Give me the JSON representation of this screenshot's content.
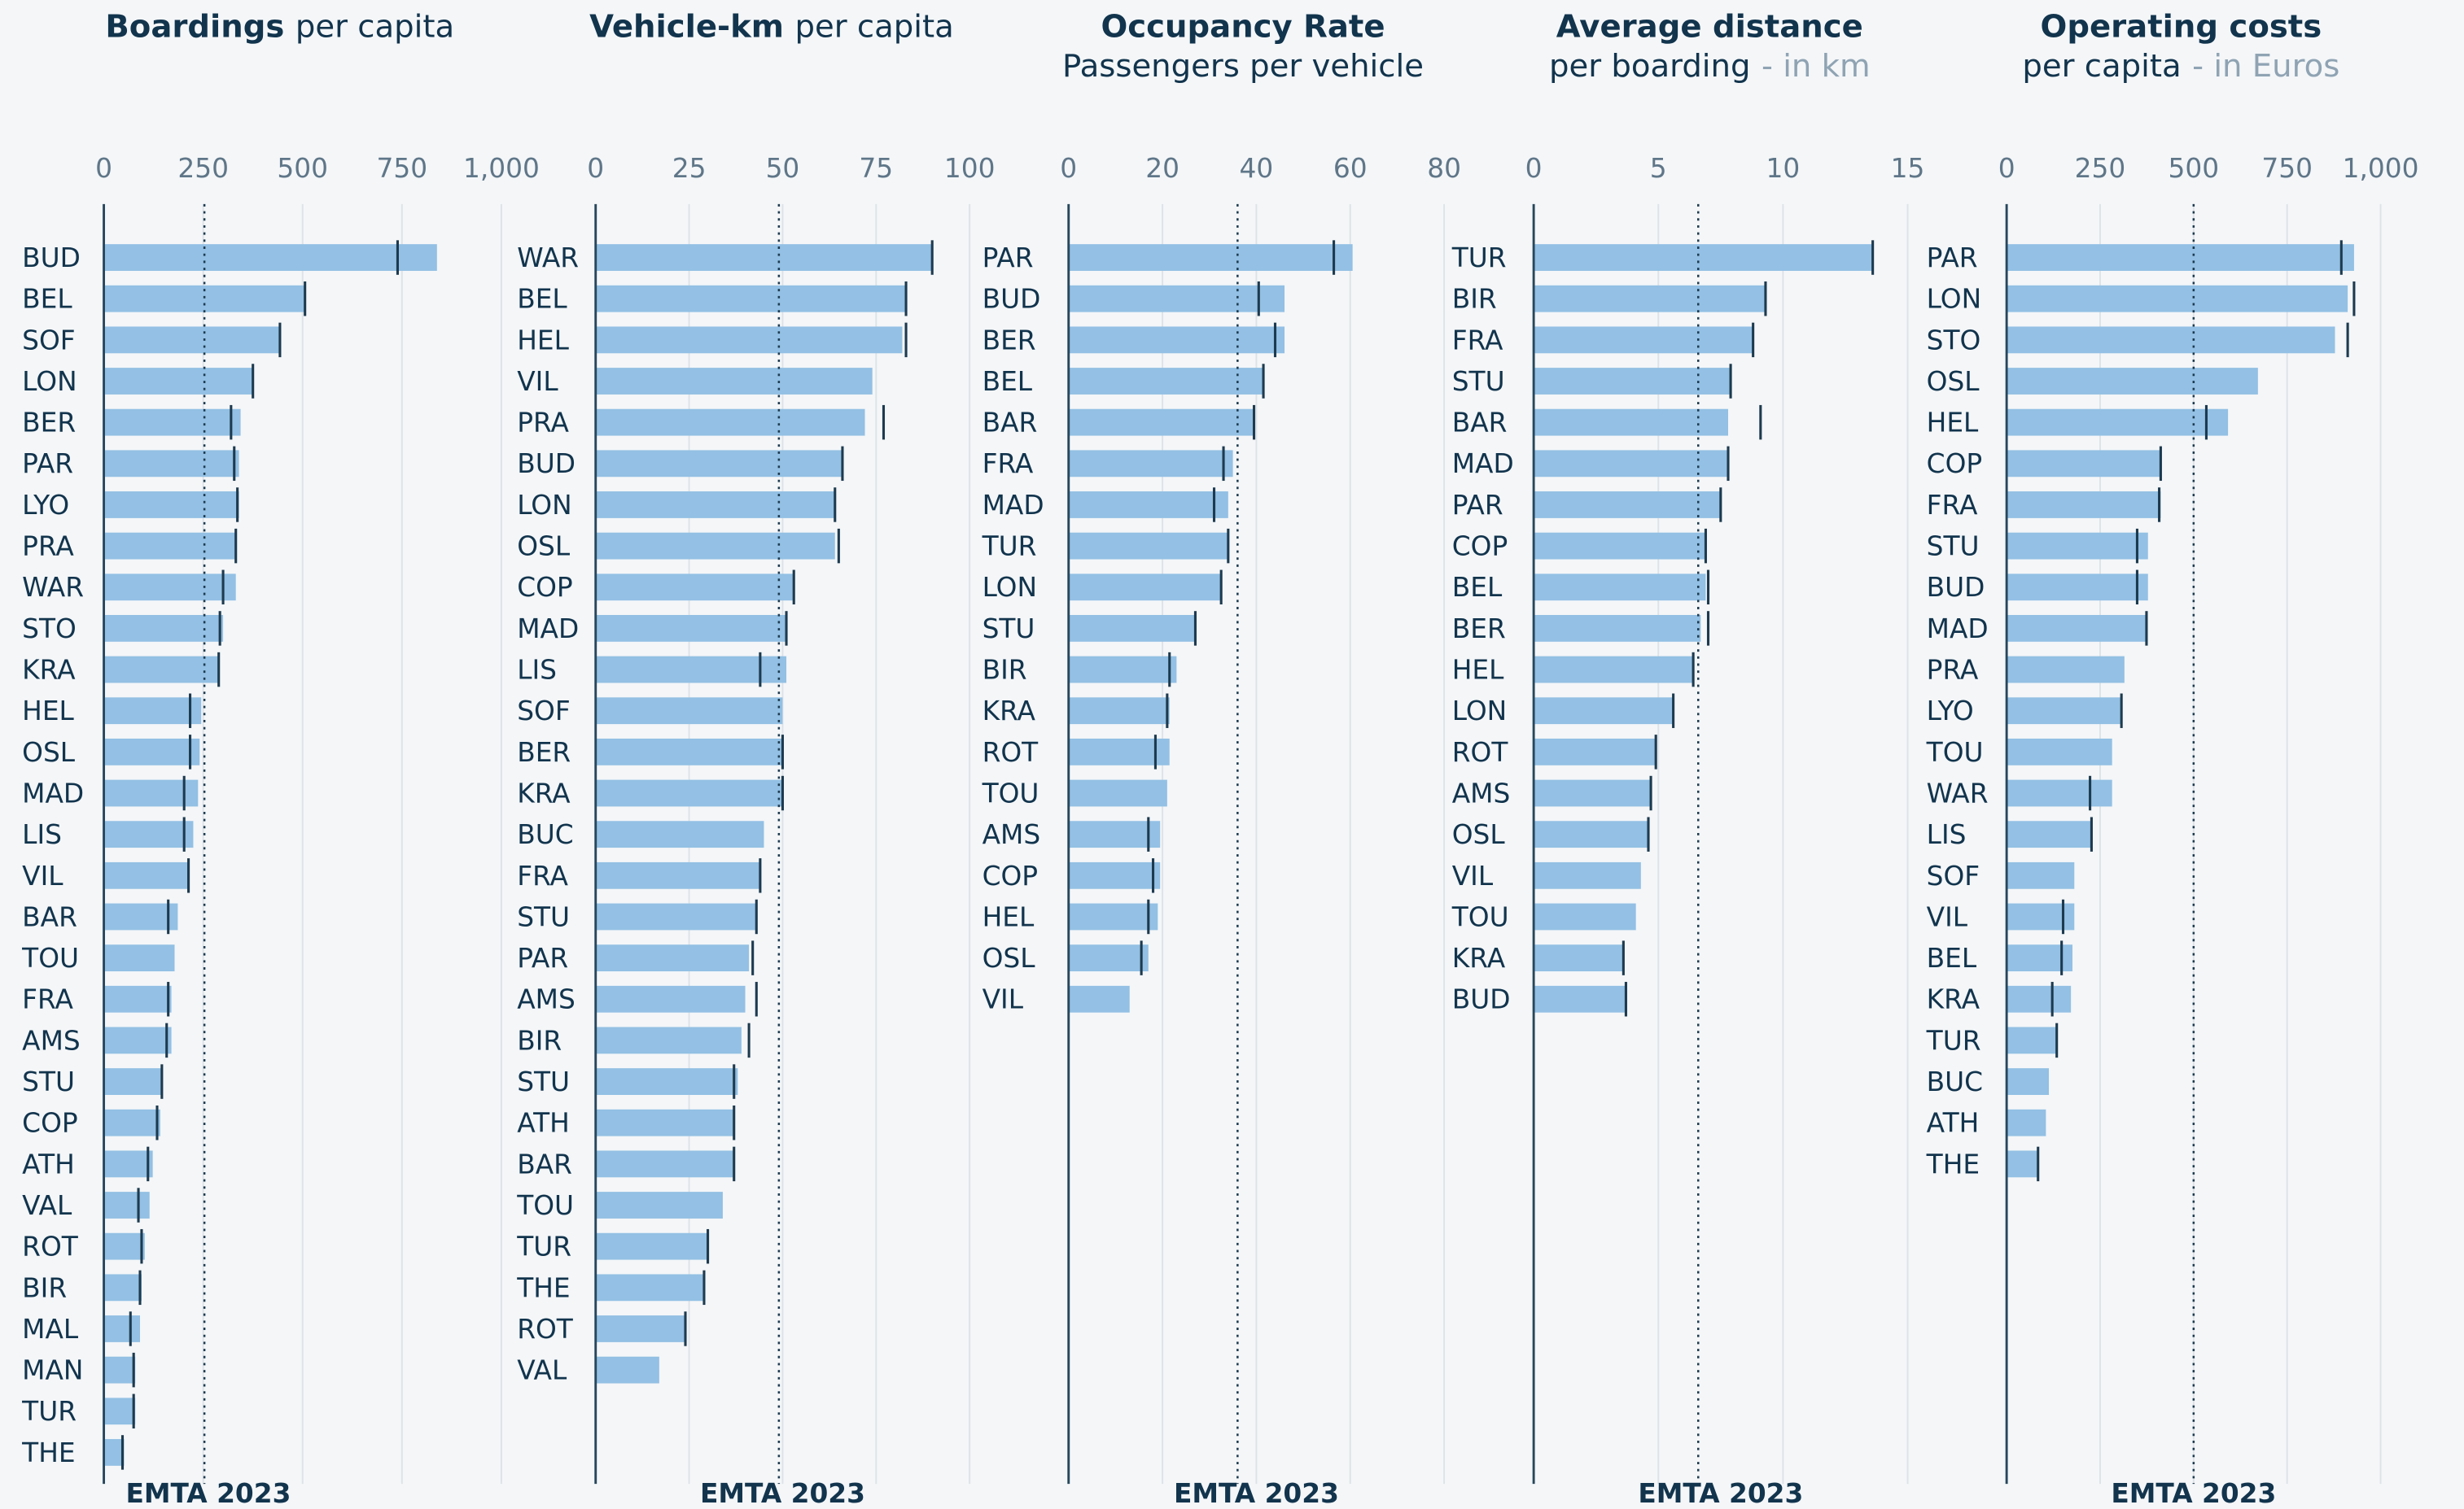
{
  "chart_data": [
    {
      "type": "bar",
      "title": "Boardings",
      "subtitle": "per capita",
      "footer": "EMTA 2023",
      "xlim": [
        0,
        1000
      ],
      "xticks": [
        0,
        250,
        500,
        750,
        {
          "value": 1000,
          "label": "1,000"
        }
      ],
      "grid": true,
      "reference_line": 253,
      "categories": [
        "BUD",
        "BEL",
        "SOF",
        "LON",
        "BER",
        "PAR",
        "LYO",
        "PRA",
        "WAR",
        "STO",
        "KRA",
        "HEL",
        "OSL",
        "MAD",
        "LIS",
        "VIL",
        "BAR",
        "TOU",
        "FRA",
        "AMS",
        "STU",
        "COP",
        "ATH",
        "VAL",
        "ROT",
        "BIR",
        "MAL",
        "MAN",
        "TUR",
        "THE"
      ],
      "series": [
        {
          "color": "#93c0e4",
          "values": [
            838,
            506,
            443,
            375,
            344,
            340,
            340,
            332,
            332,
            300,
            289,
            245,
            241,
            237,
            225,
            213,
            186,
            178,
            170,
            170,
            146,
            142,
            123,
            115,
            103,
            95,
            91,
            79,
            79,
            51
          ]
        },
        {
          "color": "#1d3a4f",
          "values": [
            739,
            506,
            443,
            375,
            320,
            328,
            336,
            332,
            300,
            292,
            289,
            217,
            217,
            202,
            202,
            213,
            162,
            null,
            162,
            158,
            146,
            134,
            111,
            87,
            95,
            91,
            67,
            75,
            75,
            47
          ]
        }
      ]
    },
    {
      "type": "bar",
      "title": "Vehicle-km",
      "subtitle": "per capita",
      "footer": "EMTA 2023",
      "xlim": [
        0,
        100
      ],
      "xticks": [
        0,
        25,
        50,
        75,
        100
      ],
      "grid": true,
      "reference_line": 49,
      "categories": [
        "WAR",
        "BEL",
        "HEL",
        "VIL",
        "PRA",
        "BUD",
        "LON",
        "OSL",
        "COP",
        "MAD",
        "LIS",
        "SOF",
        "BER",
        "KRA",
        "BUC",
        "FRA",
        "STU",
        "PAR",
        "AMS",
        "BIR",
        "STU",
        "ATH",
        "BAR",
        "TOU",
        "TUR",
        "THE",
        "ROT",
        "VAL"
      ],
      "series": [
        {
          "color": "#93c0e4",
          "values": [
            90,
            83,
            82,
            74,
            72,
            66,
            64,
            64,
            53,
            51,
            51,
            50,
            50,
            50,
            45,
            44,
            43,
            41,
            40,
            39,
            38,
            37,
            37,
            34,
            30,
            29,
            24,
            17
          ]
        },
        {
          "color": "#1d3a4f",
          "values": [
            90,
            83,
            83,
            null,
            77,
            66,
            64,
            65,
            53,
            51,
            44,
            null,
            50,
            50,
            null,
            44,
            43,
            42,
            43,
            41,
            37,
            37,
            37,
            null,
            30,
            29,
            24,
            null
          ]
        }
      ]
    },
    {
      "type": "bar",
      "title": "Occupancy Rate",
      "subtitle": "Passengers per vehicle",
      "footer": "EMTA 2023",
      "xlim": [
        0,
        80
      ],
      "xticks": [
        0,
        20,
        40,
        60,
        80
      ],
      "grid": true,
      "reference_line": 36,
      "categories": [
        "PAR",
        "BUD",
        "BER",
        "BEL",
        "BAR",
        "FRA",
        "MAD",
        "TUR",
        "LON",
        "STU",
        "BIR",
        "KRA",
        "ROT",
        "TOU",
        "AMS",
        "COP",
        "HEL",
        "OSL",
        "VIL"
      ],
      "series": [
        {
          "color": "#93c0e4",
          "values": [
            60.5,
            46,
            46,
            41.5,
            39.5,
            35,
            34,
            34,
            32.5,
            27,
            23,
            21.5,
            21.5,
            21,
            19.5,
            19.5,
            19,
            17,
            13
          ]
        },
        {
          "color": "#1d3a4f",
          "values": [
            56.5,
            40.5,
            44,
            41.5,
            39.5,
            33,
            31,
            34,
            32.5,
            27,
            21.5,
            21,
            18.5,
            null,
            17,
            18,
            17,
            15.5,
            null
          ]
        }
      ]
    },
    {
      "type": "bar",
      "title": "Average distance",
      "subtitle": "per boarding",
      "unit_note": "- in km",
      "footer": "EMTA 2023",
      "xlim": [
        0,
        15
      ],
      "xticks": [
        0,
        5,
        10,
        15
      ],
      "grid": true,
      "reference_line": 6.6,
      "categories": [
        "TUR",
        "BIR",
        "FRA",
        "STU",
        "BAR",
        "MAD",
        "PAR",
        "COP",
        "BEL",
        "BER",
        "HEL",
        "LON",
        "ROT",
        "AMS",
        "OSL",
        "VIL",
        "TOU",
        "KRA",
        "BUD"
      ],
      "series": [
        {
          "color": "#93c0e4",
          "values": [
            13.6,
            9.3,
            8.8,
            7.9,
            7.8,
            7.8,
            7.5,
            6.9,
            6.9,
            6.7,
            6.4,
            5.6,
            4.9,
            4.7,
            4.6,
            4.3,
            4.1,
            3.6,
            3.7
          ]
        },
        {
          "color": "#1d3a4f",
          "values": [
            13.6,
            9.3,
            8.8,
            7.9,
            9.1,
            7.8,
            7.5,
            6.9,
            7.0,
            7.0,
            6.4,
            5.6,
            4.9,
            4.7,
            4.6,
            null,
            null,
            3.6,
            3.7
          ]
        }
      ]
    },
    {
      "type": "bar",
      "title": "Operating costs",
      "subtitle": "per capita",
      "unit_note": "- in Euros",
      "footer": "EMTA 2023",
      "xlim": [
        0,
        1000
      ],
      "xticks": [
        0,
        250,
        500,
        750,
        {
          "value": 1000,
          "label": "1,000"
        }
      ],
      "grid": true,
      "reference_line": 500,
      "categories": [
        "PAR",
        "LON",
        "STO",
        "OSL",
        "HEL",
        "COP",
        "FRA",
        "STU",
        "BUD",
        "MAD",
        "PRA",
        "LYO",
        "TOU",
        "WAR",
        "LIS",
        "SOF",
        "VIL",
        "BEL",
        "KRA",
        "TUR",
        "BUC",
        "ATH",
        "THE"
      ],
      "series": [
        {
          "color": "#93c0e4",
          "values": [
            929,
            912,
            878,
            672,
            592,
            412,
            412,
            378,
            378,
            374,
            315,
            307,
            282,
            282,
            227,
            181,
            181,
            176,
            172,
            134,
            113,
            105,
            84
          ]
        },
        {
          "color": "#1d3a4f",
          "values": [
            895,
            929,
            912,
            null,
            534,
            412,
            408,
            349,
            349,
            374,
            null,
            307,
            null,
            223,
            227,
            null,
            151,
            147,
            122,
            134,
            null,
            null,
            84
          ]
        }
      ]
    }
  ]
}
